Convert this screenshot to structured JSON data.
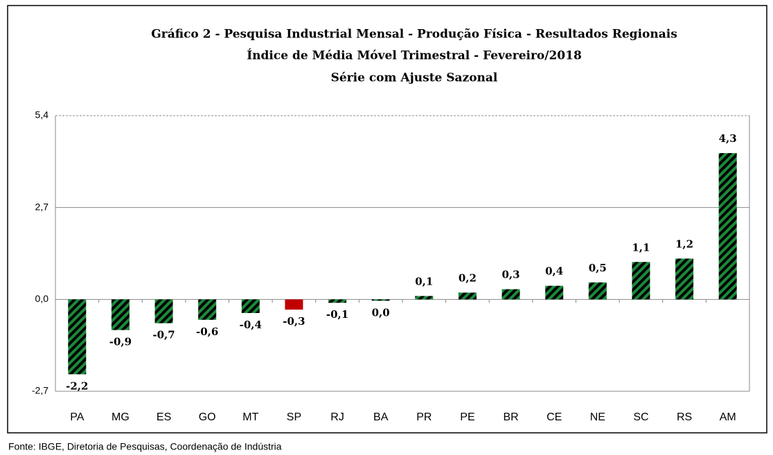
{
  "chart_data": {
    "type": "bar",
    "title": "Gráfico 2 - Pesquisa Industrial Mensal - Produção Física - Resultados Regionais",
    "subtitle": [
      "Índice de Média Móvel Trimestral - Fevereiro/2018",
      "Série com Ajuste Sazonal"
    ],
    "source": "Fonte: IBGE, Diretoria de Pesquisas, Coordenação de Indústria",
    "categories": [
      "PA",
      "MG",
      "ES",
      "GO",
      "MT",
      "SP",
      "RJ",
      "BA",
      "PR",
      "PE",
      "BR",
      "CE",
      "NE",
      "SC",
      "RS",
      "AM"
    ],
    "values": [
      -2.2,
      -0.9,
      -0.7,
      -0.6,
      -0.4,
      -0.3,
      -0.1,
      -0.04,
      0.1,
      0.2,
      0.3,
      0.4,
      0.5,
      1.1,
      1.2,
      4.3
    ],
    "value_labels": [
      "-2,2",
      "-0,9",
      "-0,7",
      "-0,6",
      "-0,4",
      "-0,3",
      "-0,1",
      "0,0",
      "0,1",
      "0,2",
      "0,3",
      "0,4",
      "0,5",
      "1,1",
      "1,2",
      "4,3"
    ],
    "colors": [
      "#1a8a3a",
      "#1a8a3a",
      "#1a8a3a",
      "#1a8a3a",
      "#1a8a3a",
      "#c00000",
      "#1a8a3a",
      "#1a8a3a",
      "#1a8a3a",
      "#1a8a3a",
      "#1a8a3a",
      "#1a8a3a",
      "#1a8a3a",
      "#1a8a3a",
      "#1a8a3a",
      "#1a8a3a"
    ],
    "hatched": true,
    "ylim": [
      -2.7,
      5.4
    ],
    "yticks": [
      {
        "value": -2.7,
        "label": "-2,7"
      },
      {
        "value": 0,
        "label": "0,0"
      },
      {
        "value": 2.7,
        "label": "2,7"
      },
      {
        "value": 5.4,
        "label": "5,4"
      }
    ],
    "grid": true
  }
}
